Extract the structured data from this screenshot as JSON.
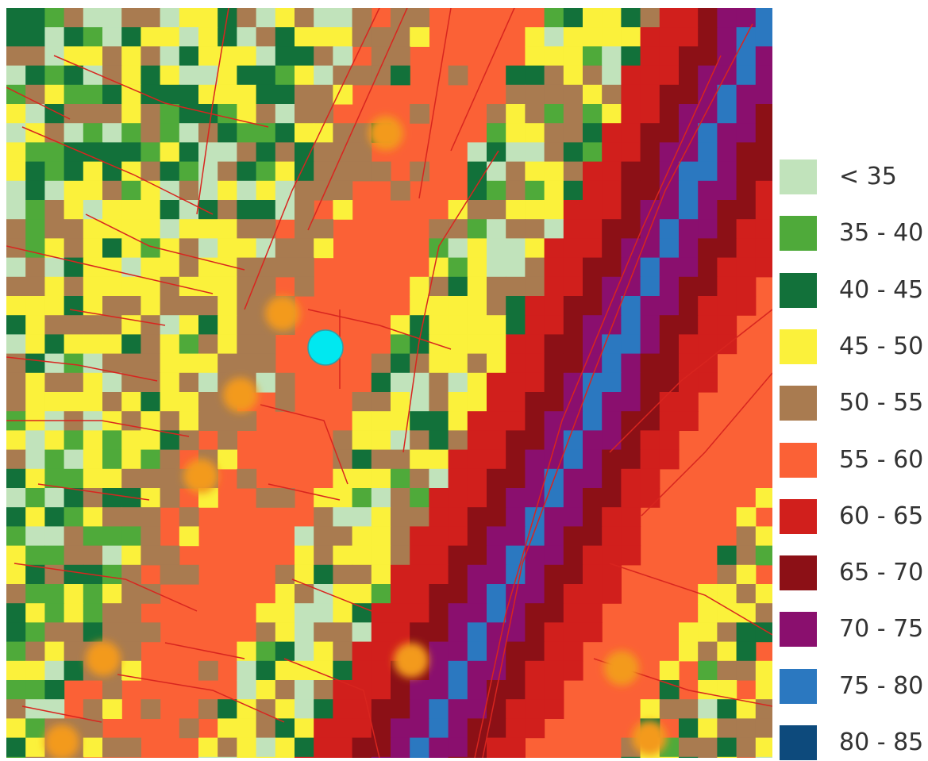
{
  "legend": {
    "items": [
      {
        "label": "< 35",
        "color": "#c1e3bb"
      },
      {
        "label": "35 - 40",
        "color": "#4faa3a"
      },
      {
        "label": "40 - 45",
        "color": "#12713a"
      },
      {
        "label": "45 - 50",
        "color": "#fbf13b"
      },
      {
        "label": "50 - 55",
        "color": "#a97b50"
      },
      {
        "label": "55 - 60",
        "color": "#fb6136"
      },
      {
        "label": "60 - 65",
        "color": "#d11f1c"
      },
      {
        "label": "65 - 70",
        "color": "#8c1016"
      },
      {
        "label": "70 - 75",
        "color": "#8a0f6e"
      },
      {
        "label": "75 - 80",
        "color": "#2b78c0"
      },
      {
        "label": "80 - 85",
        "color": "#0d4a7c"
      }
    ]
  },
  "map": {
    "parcel_line_color": "#d8251f",
    "marker_color": "#00e8f0",
    "source_color": "#f39a1f"
  }
}
